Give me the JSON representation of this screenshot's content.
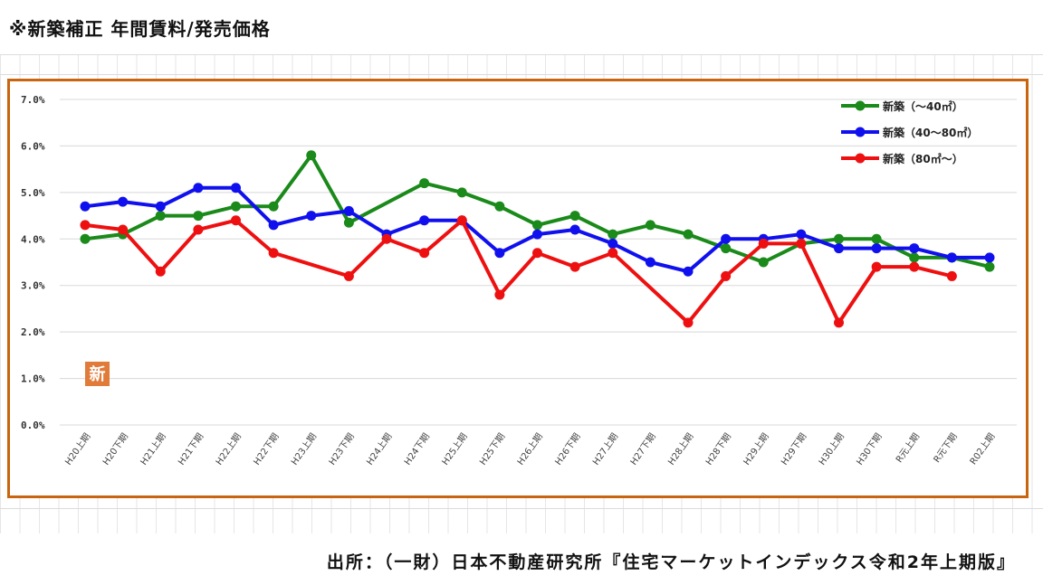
{
  "page": {
    "title": "※新築補正 年間賃料/発売価格",
    "source": "出所：（一財）日本不動産研究所『住宅マーケットインデックス令和2年上期版』",
    "badge": "新"
  },
  "colors": {
    "frame": "#c8650e",
    "green": "#1a8a1a",
    "blue": "#1010ee",
    "red": "#ee1010",
    "badge": "#e07b3a"
  },
  "chart_data": {
    "type": "line",
    "title": "",
    "xlabel": "",
    "ylabel": "",
    "ylim": [
      0,
      7
    ],
    "yticks": [
      "0.0%",
      "1.0%",
      "2.0%",
      "3.0%",
      "4.0%",
      "5.0%",
      "6.0%",
      "7.0%"
    ],
    "grid": "horizontal",
    "legend_position": "top-right",
    "categories": [
      "H20上期",
      "H20下期",
      "H21上期",
      "H21下期",
      "H22上期",
      "H22下期",
      "H23上期",
      "H23下期",
      "H24上期",
      "H24下期",
      "H25上期",
      "H25下期",
      "H26上期",
      "H26下期",
      "H27上期",
      "H27下期",
      "H28上期",
      "H28下期",
      "H29上期",
      "H29下期",
      "H30上期",
      "H30下期",
      "R元上期",
      "R元下期",
      "R02上期"
    ],
    "series": [
      {
        "name": "新築（～40㎡）",
        "color": "green",
        "values": [
          4.0,
          4.1,
          4.5,
          4.5,
          4.7,
          4.7,
          5.8,
          4.35,
          null,
          5.2,
          5.0,
          4.7,
          4.3,
          4.5,
          4.1,
          4.3,
          4.1,
          3.8,
          3.5,
          3.9,
          4.0,
          4.0,
          3.6,
          3.6,
          3.4
        ]
      },
      {
        "name": "新築（40～80㎡）",
        "color": "blue",
        "values": [
          4.7,
          4.8,
          4.7,
          5.1,
          5.1,
          4.3,
          4.5,
          4.6,
          4.1,
          4.4,
          4.4,
          3.7,
          4.1,
          4.2,
          3.9,
          3.5,
          3.3,
          4.0,
          4.0,
          4.1,
          3.8,
          3.8,
          3.8,
          3.6,
          3.6
        ]
      },
      {
        "name": "新築（80㎡～）",
        "color": "red",
        "values": [
          4.3,
          4.2,
          3.3,
          4.2,
          4.4,
          3.7,
          null,
          3.2,
          4.0,
          3.7,
          4.4,
          2.8,
          3.7,
          3.4,
          3.7,
          null,
          2.2,
          3.2,
          3.9,
          3.9,
          2.2,
          3.4,
          3.4,
          3.2,
          null
        ]
      }
    ]
  }
}
